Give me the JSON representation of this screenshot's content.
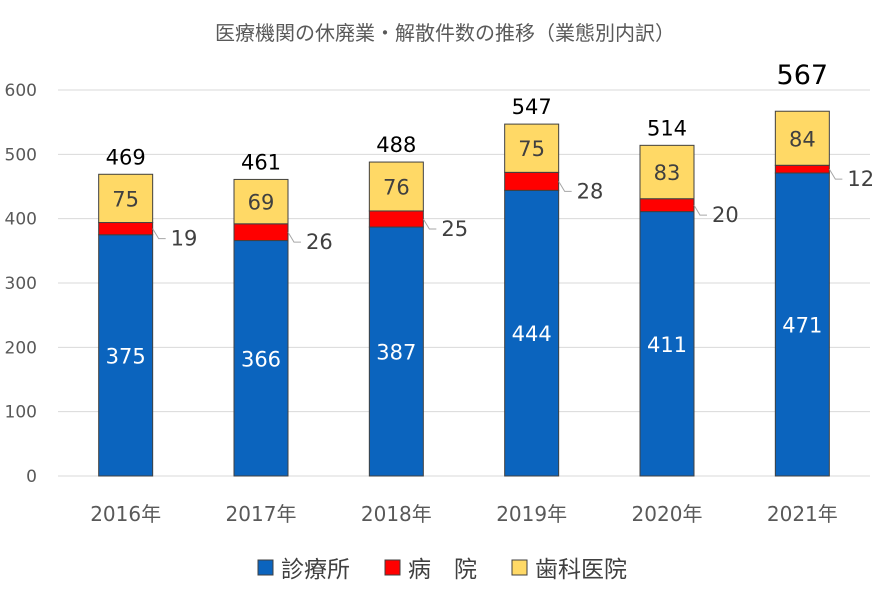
{
  "chart_data": {
    "type": "bar",
    "stacked": true,
    "title": "医療機関の休廃業・解散件数の推移（業態別内訳）",
    "categories": [
      "2016年",
      "2017年",
      "2018年",
      "2019年",
      "2020年",
      "2021年"
    ],
    "series": [
      {
        "name": "診療所",
        "values": [
          375,
          366,
          387,
          444,
          411,
          471
        ],
        "color": "#0B64BE"
      },
      {
        "name": "病　院",
        "values": [
          19,
          26,
          25,
          28,
          20,
          12
        ],
        "color": "#FF0000"
      },
      {
        "name": "歯科医院",
        "values": [
          75,
          69,
          76,
          75,
          83,
          84
        ],
        "color": "#FFD966"
      }
    ],
    "totals": [
      "469",
      "461",
      "488",
      "547",
      "514",
      "567"
    ],
    "ylim": [
      0,
      600
    ],
    "yticks": [
      "0",
      "100",
      "200",
      "300",
      "400",
      "500",
      "600"
    ],
    "grid": true,
    "legend_position": "bottom"
  }
}
